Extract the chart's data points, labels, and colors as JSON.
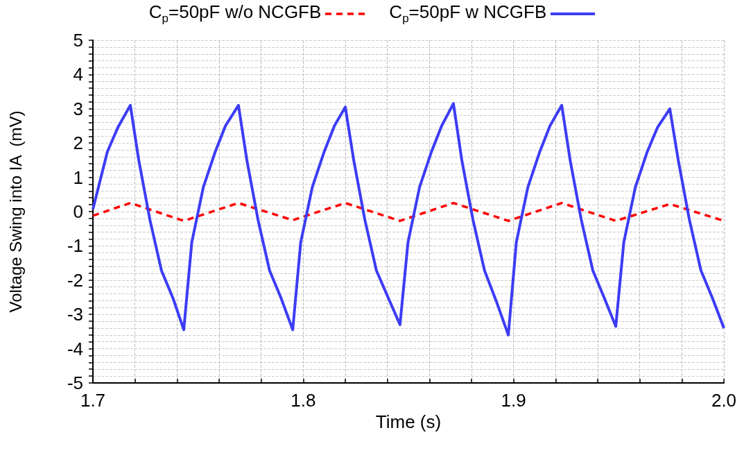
{
  "chart_data": {
    "type": "line",
    "xlabel": "Time (s)",
    "ylabel": "Voltage Swing into IA  (mV)",
    "xlim": [
      1.7,
      2.0
    ],
    "ylim": [
      -5,
      5
    ],
    "xticks": [
      1.7,
      {
        "value": 1.72,
        "label": null
      },
      {
        "value": 1.74,
        "label": null
      },
      {
        "value": 1.76,
        "label": null
      },
      {
        "value": 1.78,
        "label": null
      },
      1.8,
      {
        "value": 1.82,
        "label": null
      },
      {
        "value": 1.84,
        "label": null
      },
      {
        "value": 1.86,
        "label": null
      },
      {
        "value": 1.88,
        "label": null
      },
      1.9,
      {
        "value": 1.92,
        "label": null
      },
      {
        "value": 1.94,
        "label": null
      },
      {
        "value": 1.96,
        "label": null
      },
      {
        "value": 1.98,
        "label": null
      },
      {
        "value": 2.0,
        "label": "2.0"
      }
    ],
    "yticks": [
      -5,
      {
        "value": -4.8,
        "label": null
      },
      {
        "value": -4.6,
        "label": null
      },
      {
        "value": -4.4,
        "label": null
      },
      {
        "value": -4.2,
        "label": null
      },
      -4,
      {
        "value": -3.8,
        "label": null
      },
      {
        "value": -3.6,
        "label": null
      },
      {
        "value": -3.4,
        "label": null
      },
      {
        "value": -3.2,
        "label": null
      },
      -3,
      {
        "value": -2.8,
        "label": null
      },
      {
        "value": -2.6,
        "label": null
      },
      {
        "value": -2.4,
        "label": null
      },
      {
        "value": -2.2,
        "label": null
      },
      -2,
      {
        "value": -1.8,
        "label": null
      },
      {
        "value": -1.6,
        "label": null
      },
      {
        "value": -1.4,
        "label": null
      },
      {
        "value": -1.2,
        "label": null
      },
      -1,
      {
        "value": -0.8,
        "label": null
      },
      {
        "value": -0.6,
        "label": null
      },
      {
        "value": -0.4,
        "label": null
      },
      {
        "value": -0.2,
        "label": null
      },
      0,
      {
        "value": 0.2,
        "label": null
      },
      {
        "value": 0.4,
        "label": null
      },
      {
        "value": 0.6,
        "label": null
      },
      {
        "value": 0.8,
        "label": null
      },
      1,
      {
        "value": 1.2,
        "label": null
      },
      {
        "value": 1.4,
        "label": null
      },
      {
        "value": 1.6,
        "label": null
      },
      {
        "value": 1.8,
        "label": null
      },
      2,
      {
        "value": 2.2,
        "label": null
      },
      {
        "value": 2.4,
        "label": null
      },
      {
        "value": 2.6,
        "label": null
      },
      {
        "value": 2.8,
        "label": null
      },
      3,
      {
        "value": 3.2,
        "label": null
      },
      {
        "value": 3.4,
        "label": null
      },
      {
        "value": 3.6,
        "label": null
      },
      {
        "value": 3.8,
        "label": null
      },
      4,
      {
        "value": 4.2,
        "label": null
      },
      {
        "value": 4.4,
        "label": null
      },
      {
        "value": 4.6,
        "label": null
      },
      {
        "value": 4.8,
        "label": null
      },
      5
    ],
    "grid": true,
    "legend": "top",
    "marker": "none",
    "series": [
      {
        "name": "C$_{p}$=50pF w/o NCGFB",
        "color": "#ff0000",
        "line_style": "dashed",
        "x": [
          1.7,
          1.7178,
          1.7432,
          1.7692,
          1.795,
          1.82,
          1.846,
          1.8714,
          1.8975,
          1.9229,
          1.9486,
          1.9743,
          2.0
        ],
        "values": [
          -0.12,
          0.25,
          -0.27,
          0.25,
          -0.25,
          0.25,
          -0.27,
          0.25,
          -0.27,
          0.25,
          -0.27,
          0.22,
          -0.27
        ]
      },
      {
        "name": "C$_{p}$=50pF w NCGFB",
        "color": "#3c3cf5",
        "line_style": "solid",
        "x": [
          1.7,
          1.7069,
          1.7119,
          1.7178,
          1.7218,
          1.7271,
          1.7326,
          1.7381,
          1.7432,
          1.747,
          1.7525,
          1.758,
          1.763,
          1.7692,
          1.7732,
          1.7785,
          1.784,
          1.7895,
          1.795,
          1.7988,
          1.8043,
          1.8098,
          1.8148,
          1.82,
          1.824,
          1.8293,
          1.8348,
          1.8403,
          1.846,
          1.8498,
          1.8553,
          1.8608,
          1.8658,
          1.8714,
          1.8754,
          1.8807,
          1.8862,
          1.8917,
          1.8975,
          1.9013,
          1.9068,
          1.9123,
          1.9173,
          1.9229,
          1.9269,
          1.9322,
          1.9377,
          1.9432,
          1.9486,
          1.9524,
          1.9579,
          1.9634,
          1.9684,
          1.9743,
          1.9783,
          1.9836,
          1.9891,
          1.9946,
          2.0
        ],
        "values": [
          0.07,
          1.75,
          2.46,
          3.1,
          1.5,
          -0.24,
          -1.72,
          -2.53,
          -3.45,
          -0.9,
          0.71,
          1.72,
          2.5,
          3.1,
          1.5,
          -0.24,
          -1.72,
          -2.53,
          -3.45,
          -0.9,
          0.71,
          1.72,
          2.5,
          3.05,
          1.5,
          -0.24,
          -1.72,
          -2.5,
          -3.3,
          -0.9,
          0.71,
          1.72,
          2.5,
          3.15,
          1.5,
          -0.24,
          -1.72,
          -2.6,
          -3.6,
          -0.9,
          0.71,
          1.72,
          2.5,
          3.1,
          1.5,
          -0.24,
          -1.72,
          -2.53,
          -3.35,
          -0.9,
          0.71,
          1.72,
          2.45,
          3.0,
          1.5,
          -0.24,
          -1.72,
          -2.53,
          -3.4
        ]
      }
    ]
  }
}
